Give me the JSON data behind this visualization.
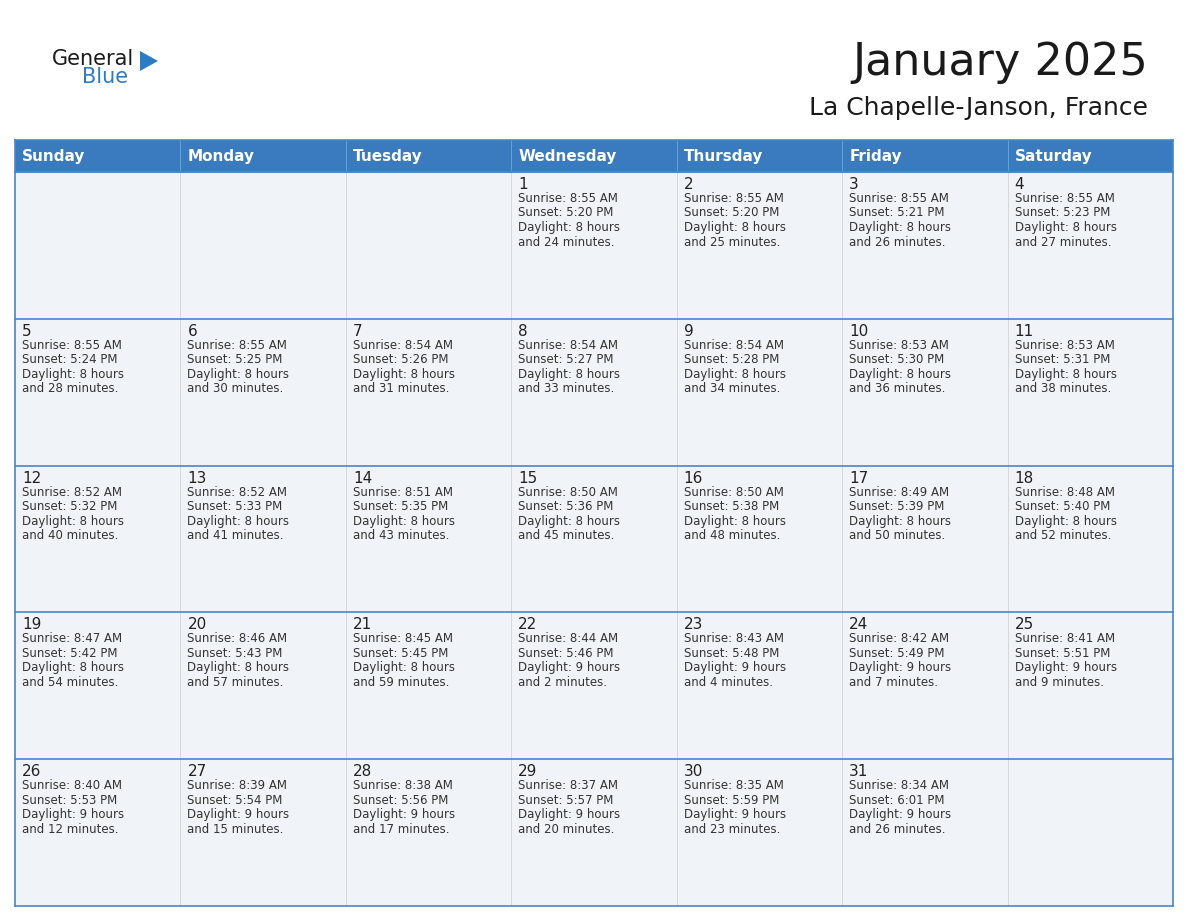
{
  "title": "January 2025",
  "subtitle": "La Chapelle-Janson, France",
  "header_color": "#3a7bbf",
  "header_text_color": "#ffffff",
  "cell_bg_color": "#f0f4f8",
  "cell_border_color": "#4a86c8",
  "row_divider_color": "#4a86c8",
  "text_color": "#222222",
  "info_text_color": "#333333",
  "day_headers": [
    "Sunday",
    "Monday",
    "Tuesday",
    "Wednesday",
    "Thursday",
    "Friday",
    "Saturday"
  ],
  "weeks": [
    [
      {
        "day": "",
        "info": ""
      },
      {
        "day": "",
        "info": ""
      },
      {
        "day": "",
        "info": ""
      },
      {
        "day": "1",
        "info": "Sunrise: 8:55 AM\nSunset: 5:20 PM\nDaylight: 8 hours\nand 24 minutes."
      },
      {
        "day": "2",
        "info": "Sunrise: 8:55 AM\nSunset: 5:20 PM\nDaylight: 8 hours\nand 25 minutes."
      },
      {
        "day": "3",
        "info": "Sunrise: 8:55 AM\nSunset: 5:21 PM\nDaylight: 8 hours\nand 26 minutes."
      },
      {
        "day": "4",
        "info": "Sunrise: 8:55 AM\nSunset: 5:23 PM\nDaylight: 8 hours\nand 27 minutes."
      }
    ],
    [
      {
        "day": "5",
        "info": "Sunrise: 8:55 AM\nSunset: 5:24 PM\nDaylight: 8 hours\nand 28 minutes."
      },
      {
        "day": "6",
        "info": "Sunrise: 8:55 AM\nSunset: 5:25 PM\nDaylight: 8 hours\nand 30 minutes."
      },
      {
        "day": "7",
        "info": "Sunrise: 8:54 AM\nSunset: 5:26 PM\nDaylight: 8 hours\nand 31 minutes."
      },
      {
        "day": "8",
        "info": "Sunrise: 8:54 AM\nSunset: 5:27 PM\nDaylight: 8 hours\nand 33 minutes."
      },
      {
        "day": "9",
        "info": "Sunrise: 8:54 AM\nSunset: 5:28 PM\nDaylight: 8 hours\nand 34 minutes."
      },
      {
        "day": "10",
        "info": "Sunrise: 8:53 AM\nSunset: 5:30 PM\nDaylight: 8 hours\nand 36 minutes."
      },
      {
        "day": "11",
        "info": "Sunrise: 8:53 AM\nSunset: 5:31 PM\nDaylight: 8 hours\nand 38 minutes."
      }
    ],
    [
      {
        "day": "12",
        "info": "Sunrise: 8:52 AM\nSunset: 5:32 PM\nDaylight: 8 hours\nand 40 minutes."
      },
      {
        "day": "13",
        "info": "Sunrise: 8:52 AM\nSunset: 5:33 PM\nDaylight: 8 hours\nand 41 minutes."
      },
      {
        "day": "14",
        "info": "Sunrise: 8:51 AM\nSunset: 5:35 PM\nDaylight: 8 hours\nand 43 minutes."
      },
      {
        "day": "15",
        "info": "Sunrise: 8:50 AM\nSunset: 5:36 PM\nDaylight: 8 hours\nand 45 minutes."
      },
      {
        "day": "16",
        "info": "Sunrise: 8:50 AM\nSunset: 5:38 PM\nDaylight: 8 hours\nand 48 minutes."
      },
      {
        "day": "17",
        "info": "Sunrise: 8:49 AM\nSunset: 5:39 PM\nDaylight: 8 hours\nand 50 minutes."
      },
      {
        "day": "18",
        "info": "Sunrise: 8:48 AM\nSunset: 5:40 PM\nDaylight: 8 hours\nand 52 minutes."
      }
    ],
    [
      {
        "day": "19",
        "info": "Sunrise: 8:47 AM\nSunset: 5:42 PM\nDaylight: 8 hours\nand 54 minutes."
      },
      {
        "day": "20",
        "info": "Sunrise: 8:46 AM\nSunset: 5:43 PM\nDaylight: 8 hours\nand 57 minutes."
      },
      {
        "day": "21",
        "info": "Sunrise: 8:45 AM\nSunset: 5:45 PM\nDaylight: 8 hours\nand 59 minutes."
      },
      {
        "day": "22",
        "info": "Sunrise: 8:44 AM\nSunset: 5:46 PM\nDaylight: 9 hours\nand 2 minutes."
      },
      {
        "day": "23",
        "info": "Sunrise: 8:43 AM\nSunset: 5:48 PM\nDaylight: 9 hours\nand 4 minutes."
      },
      {
        "day": "24",
        "info": "Sunrise: 8:42 AM\nSunset: 5:49 PM\nDaylight: 9 hours\nand 7 minutes."
      },
      {
        "day": "25",
        "info": "Sunrise: 8:41 AM\nSunset: 5:51 PM\nDaylight: 9 hours\nand 9 minutes."
      }
    ],
    [
      {
        "day": "26",
        "info": "Sunrise: 8:40 AM\nSunset: 5:53 PM\nDaylight: 9 hours\nand 12 minutes."
      },
      {
        "day": "27",
        "info": "Sunrise: 8:39 AM\nSunset: 5:54 PM\nDaylight: 9 hours\nand 15 minutes."
      },
      {
        "day": "28",
        "info": "Sunrise: 8:38 AM\nSunset: 5:56 PM\nDaylight: 9 hours\nand 17 minutes."
      },
      {
        "day": "29",
        "info": "Sunrise: 8:37 AM\nSunset: 5:57 PM\nDaylight: 9 hours\nand 20 minutes."
      },
      {
        "day": "30",
        "info": "Sunrise: 8:35 AM\nSunset: 5:59 PM\nDaylight: 9 hours\nand 23 minutes."
      },
      {
        "day": "31",
        "info": "Sunrise: 8:34 AM\nSunset: 6:01 PM\nDaylight: 9 hours\nand 26 minutes."
      },
      {
        "day": "",
        "info": ""
      }
    ]
  ],
  "logo_general_color": "#1a1a1a",
  "logo_blue_color": "#2b7cc4",
  "logo_triangle_color": "#2b7cc4",
  "title_fontsize": 32,
  "subtitle_fontsize": 18,
  "header_fontsize": 11,
  "day_number_fontsize": 11,
  "info_fontsize": 8.5
}
